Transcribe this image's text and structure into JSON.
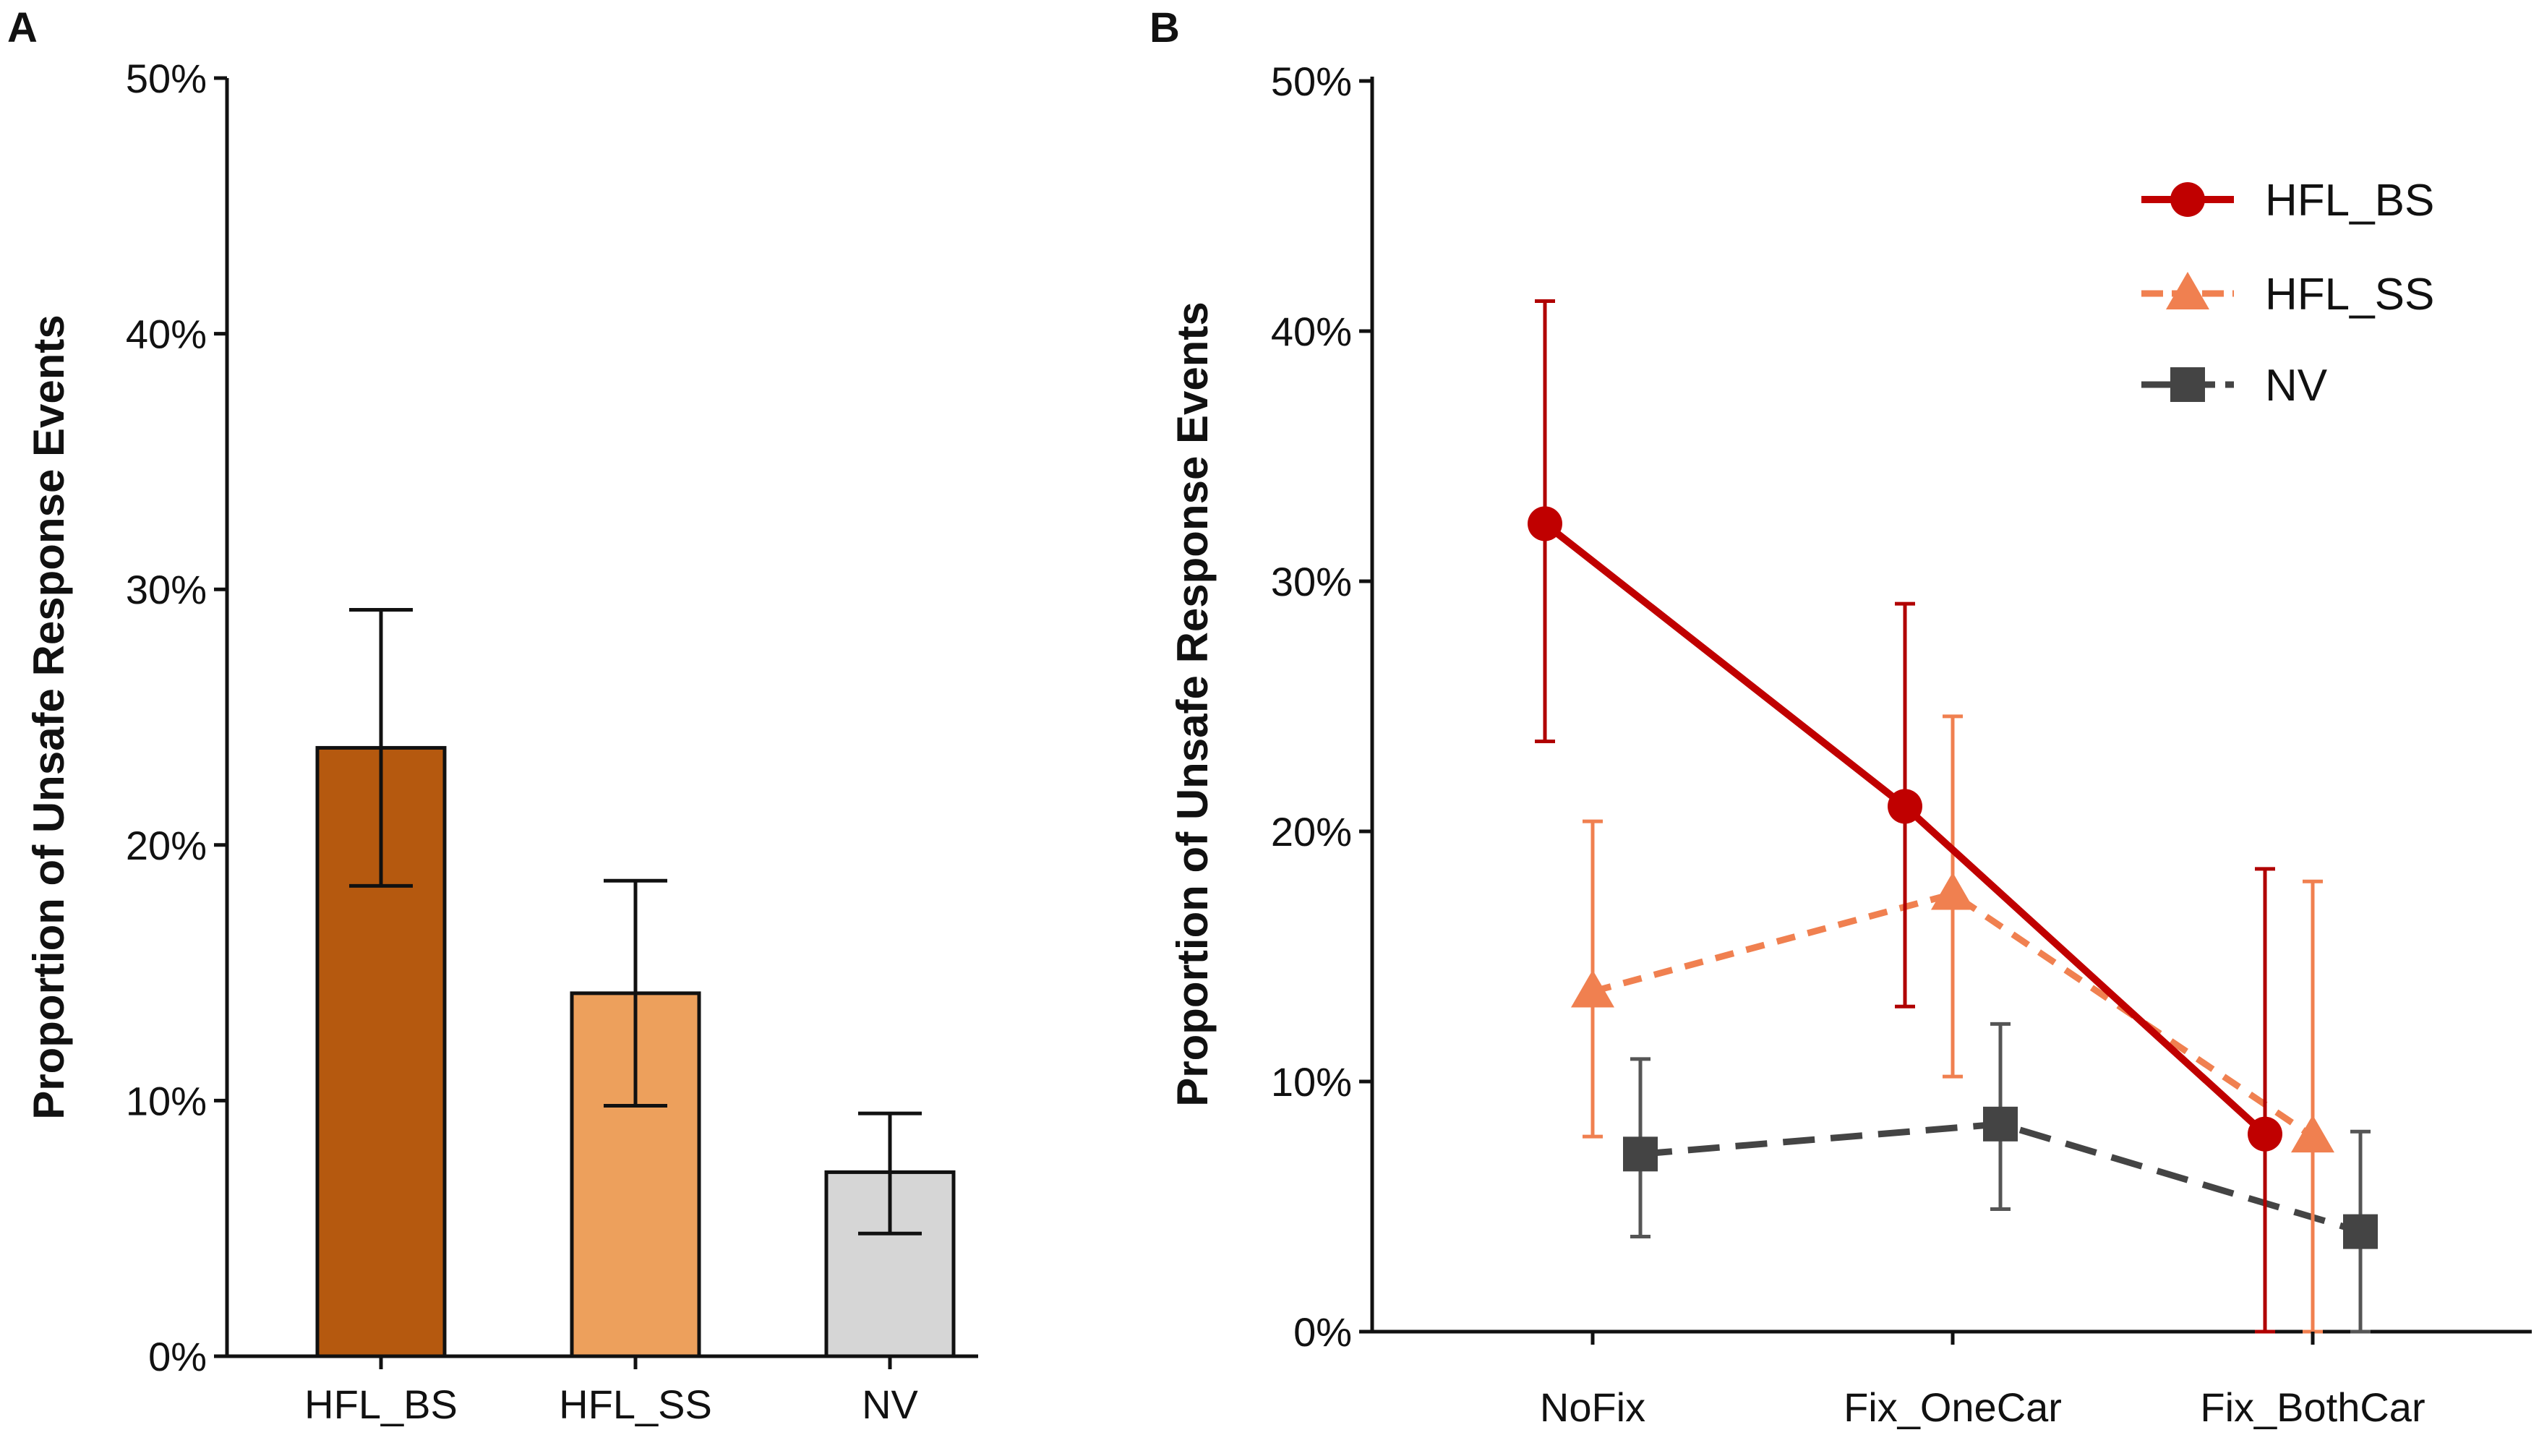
{
  "colors": {
    "hfl_bs_bar": "#b5590f",
    "hfl_ss_bar": "#eda05c",
    "nv_bar": "#d6d6d6",
    "hfl_bs_line": "#c00000",
    "hfl_ss_line": "#f08050",
    "nv_line": "#444444",
    "axis": "#111111"
  },
  "chart_data": [
    {
      "panel": "A",
      "type": "bar",
      "ylabel": "Proportion of Unsafe Response Events",
      "ylim": [
        0,
        50
      ],
      "yticks": [
        "0%",
        "10%",
        "20%",
        "30%",
        "40%",
        "50%"
      ],
      "categories": [
        "HFL_BS",
        "HFL_SS",
        "NV"
      ],
      "values": [
        23.8,
        14.2,
        7.2
      ],
      "err_low": [
        18.4,
        9.8,
        4.8
      ],
      "err_high": [
        29.2,
        18.6,
        9.5
      ]
    },
    {
      "panel": "B",
      "type": "line",
      "ylabel": "Proportion of Unsafe Response Events",
      "ylim": [
        0,
        50
      ],
      "yticks": [
        "0%",
        "10%",
        "20%",
        "30%",
        "40%",
        "50%"
      ],
      "categories": [
        "NoFix",
        "Fix_OneCar",
        "Fix_BothCar"
      ],
      "legend": "top-right",
      "series": [
        {
          "name": "HFL_BS",
          "marker": "circle",
          "dash": "solid",
          "values": [
            32.3,
            21.0,
            7.9
          ],
          "err_low": [
            23.6,
            13.0,
            0.0
          ],
          "err_high": [
            41.2,
            29.1,
            18.5
          ]
        },
        {
          "name": "HFL_SS",
          "marker": "triangle",
          "dash": "dashed",
          "values": [
            13.6,
            17.5,
            7.8
          ],
          "err_low": [
            7.8,
            10.2,
            0.0
          ],
          "err_high": [
            20.4,
            24.6,
            18.0
          ]
        },
        {
          "name": "NV",
          "marker": "square",
          "dash": "longdash",
          "values": [
            7.1,
            8.3,
            4.0
          ],
          "err_low": [
            3.8,
            4.9,
            0.0
          ],
          "err_high": [
            10.9,
            12.3,
            8.0
          ]
        }
      ]
    }
  ]
}
